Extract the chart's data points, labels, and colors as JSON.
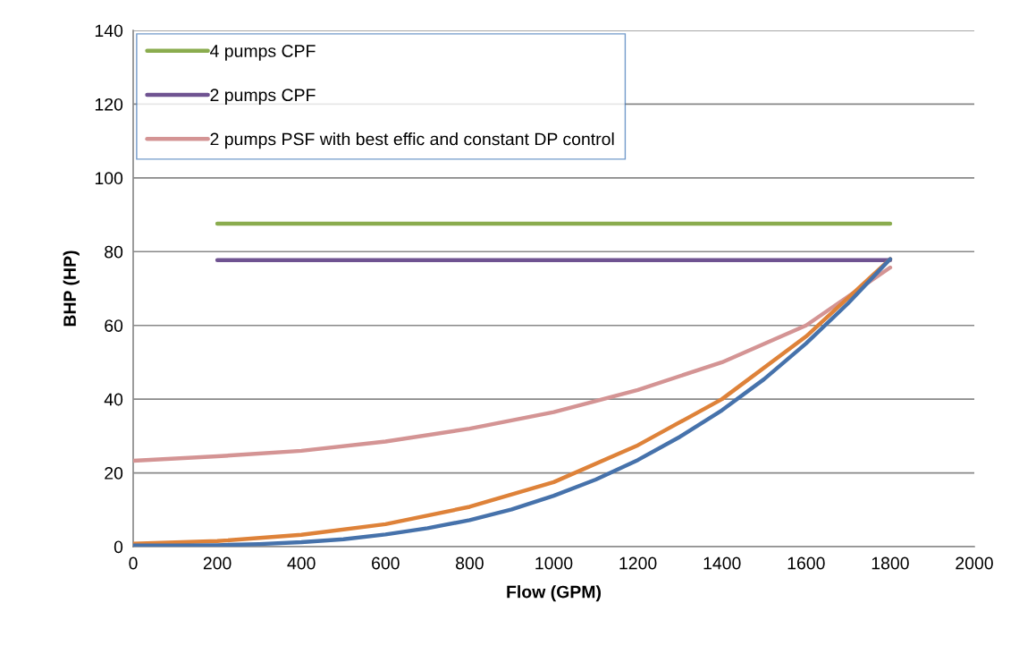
{
  "chart_data": {
    "type": "line",
    "xlabel": "Flow (GPM)",
    "ylabel": "BHP (HP)",
    "xlim": [
      0,
      2000
    ],
    "xticks": [
      0,
      200,
      400,
      600,
      800,
      1000,
      1200,
      1400,
      1600,
      1800,
      2000
    ],
    "ylim": [
      0,
      140
    ],
    "yticks": [
      0,
      20,
      40,
      60,
      80,
      100,
      120,
      140
    ],
    "grid": "y",
    "legend": "top left",
    "marker": "none",
    "line_style": "solid",
    "series": [
      {
        "name": "4 pumps CPF",
        "color": "#8aac4e",
        "x": [
          200,
          1800
        ],
        "values": [
          87.6,
          87.6
        ]
      },
      {
        "name": "2 pumps CPF",
        "color": "#6f5391",
        "x": [
          200,
          1800
        ],
        "values": [
          77.7,
          77.7
        ]
      },
      {
        "name": "2 pumps PSF with best effic and constant DP control",
        "color": "#d49494",
        "x": [
          0,
          200,
          400,
          600,
          800,
          1000,
          1200,
          1400,
          1600,
          1800
        ],
        "values": [
          23.3,
          24.5,
          26,
          28.5,
          32,
          36.5,
          42.5,
          50,
          60,
          75.7
        ]
      },
      {
        "color": "#de8239",
        "x": [
          0,
          200,
          400,
          600,
          800,
          1000,
          1200,
          1400,
          1600,
          1800
        ],
        "values": [
          0.8,
          1.5,
          3.2,
          6.1,
          10.8,
          17.5,
          27.5,
          40,
          57,
          78
        ]
      },
      {
        "color": "#4672ab",
        "x": [
          0,
          100,
          200,
          300,
          400,
          500,
          600,
          700,
          800,
          900,
          1000,
          1100,
          1200,
          1300,
          1400,
          1500,
          1600,
          1700,
          1800
        ],
        "values": [
          0.3,
          0.3,
          0.4,
          0.7,
          1.2,
          2.0,
          3.3,
          5.0,
          7.2,
          10.1,
          13.8,
          18.2,
          23.5,
          29.8,
          37,
          45.4,
          55.1,
          66,
          78
        ]
      }
    ]
  }
}
